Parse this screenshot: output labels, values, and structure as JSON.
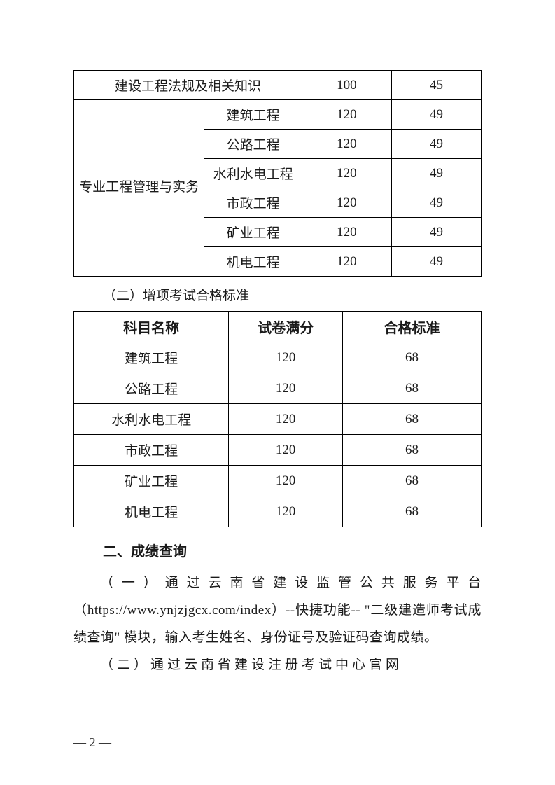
{
  "table1": {
    "row1": {
      "subject": "建设工程法规及相关知识",
      "full": "100",
      "pass": "45"
    },
    "group_label": "专业工程管理与实务",
    "rows": [
      {
        "sub": "建筑工程",
        "full": "120",
        "pass": "49"
      },
      {
        "sub": "公路工程",
        "full": "120",
        "pass": "49"
      },
      {
        "sub": "水利水电工程",
        "full": "120",
        "pass": "49"
      },
      {
        "sub": "市政工程",
        "full": "120",
        "pass": "49"
      },
      {
        "sub": "矿业工程",
        "full": "120",
        "pass": "49"
      },
      {
        "sub": "机电工程",
        "full": "120",
        "pass": "49"
      }
    ]
  },
  "section2_label": "（二）增项考试合格标准",
  "table2": {
    "headers": {
      "c1": "科目名称",
      "c2": "试卷满分",
      "c3": "合格标准"
    },
    "rows": [
      {
        "c1": "建筑工程",
        "c2": "120",
        "c3": "68"
      },
      {
        "c1": "公路工程",
        "c2": "120",
        "c3": "68"
      },
      {
        "c1": "水利水电工程",
        "c2": "120",
        "c3": "68"
      },
      {
        "c1": "市政工程",
        "c2": "120",
        "c3": "68"
      },
      {
        "c1": "矿业工程",
        "c2": "120",
        "c3": "68"
      },
      {
        "c1": "机电工程",
        "c2": "120",
        "c3": "68"
      }
    ]
  },
  "heading2": "二、成绩查询",
  "para1": "（一）通过云南省建设监管公共服务平台（https://www.ynjzjgcx.com/index）--快捷功能-- \"二级建造师考试成绩查询\" 模块，输入考生姓名、身份证号及验证码查询成绩。",
  "para2": "（二）通过云南省建设注册考试中心官网",
  "page_num": "— 2 —"
}
